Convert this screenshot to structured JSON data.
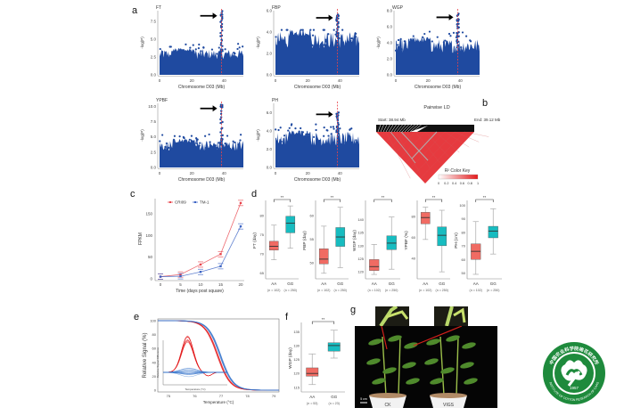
{
  "panels": {
    "a": {
      "letter": "a"
    },
    "b": {
      "letter": "b"
    },
    "c": {
      "letter": "c"
    },
    "d": {
      "letter": "d"
    },
    "e": {
      "letter": "e"
    },
    "f": {
      "letter": "f"
    },
    "g": {
      "letter": "g"
    }
  },
  "chart_data": [
    {
      "id": "a-FT",
      "type": "scatter",
      "title": "FT",
      "xlabel": "Chromosome D03 (Mb)",
      "ylabel": "-log(P)",
      "xticks": [
        "0",
        "20",
        "40"
      ],
      "yticks": [
        "0.0",
        "2.5",
        "5.0",
        "7.5"
      ],
      "xlim": [
        0,
        52
      ],
      "ylim": [
        0,
        9
      ],
      "peak_x": 38.5,
      "peak_y": 9.0,
      "baseline_max": 4.0,
      "annotation": "arrow at peak"
    },
    {
      "id": "a-FBP",
      "type": "scatter",
      "title": "FBP",
      "xlabel": "Chromosome D03 (Mb)",
      "ylabel": "-log(P)",
      "xticks": [
        "0",
        "20",
        "40"
      ],
      "yticks": [
        "0.0",
        "2.0",
        "4.0",
        "6.0"
      ],
      "xlim": [
        0,
        52
      ],
      "ylim": [
        0,
        6
      ],
      "peak_x": 38.5,
      "peak_y": 5.8,
      "baseline_max": 4.5,
      "annotation": "arrow at peak"
    },
    {
      "id": "a-WGP",
      "type": "scatter",
      "title": "WGP",
      "xlabel": "Chromosome D03 (Mb)",
      "ylabel": "-log(P)",
      "xticks": [
        "0",
        "20",
        "40"
      ],
      "yticks": [
        "0.0",
        "2.0",
        "4.0",
        "6.0",
        "8.0"
      ],
      "xlim": [
        0,
        52
      ],
      "ylim": [
        0,
        8
      ],
      "peak_x": 38.5,
      "peak_y": 7.8,
      "baseline_max": 5.0,
      "annotation": "arrow at peak"
    },
    {
      "id": "a-YPBF",
      "type": "scatter",
      "title": "YPBF",
      "xlabel": "Chromosome D03 (Mb)",
      "ylabel": "-log(P)",
      "xticks": [
        "0",
        "20",
        "40"
      ],
      "yticks": [
        "0.0",
        "2.5",
        "5.0",
        "7.5",
        "10.0"
      ],
      "xlim": [
        0,
        52
      ],
      "ylim": [
        0,
        10.5
      ],
      "peak_x": 38.5,
      "peak_y": 10.5,
      "baseline_max": 5.0,
      "annotation": "arrow at peak"
    },
    {
      "id": "a-PH",
      "type": "scatter",
      "title": "PH",
      "xlabel": "Chromosome D03 (Mb)",
      "ylabel": "-log(P)",
      "xticks": [
        "0",
        "20",
        "40"
      ],
      "yticks": [
        "0.0",
        "2.0",
        "4.0",
        "6.0"
      ],
      "xlim": [
        0,
        52
      ],
      "ylim": [
        0,
        7
      ],
      "peak_x": 38.5,
      "peak_y": 6.3,
      "baseline_max": 4.3,
      "annotation": "arrow at peak"
    },
    {
      "id": "b",
      "type": "heatmap",
      "title": "Pairwise LD",
      "start_label": "Start: 38.94 Mb",
      "end_label": "End: 39.12 Mb",
      "key_title": "R² Color Key",
      "key_ticks": [
        "0",
        "0.2",
        "0.4",
        "0.6",
        "0.8",
        "1"
      ]
    },
    {
      "id": "c",
      "type": "line",
      "xlabel": "Time (days post square)",
      "ylabel": "FPKM",
      "x": [
        0,
        5,
        10,
        15,
        20
      ],
      "xticks": [
        "0",
        "5",
        "10",
        "15",
        "20"
      ],
      "yticks": [
        "0",
        "50",
        "100",
        "150"
      ],
      "ylim": [
        0,
        185
      ],
      "series": [
        {
          "name": "CRI09",
          "color": "#e8434b",
          "values": [
            5,
            10,
            33,
            57,
            175
          ]
        },
        {
          "name": "TM-1",
          "color": "#3b63c4",
          "values": [
            5,
            6,
            16,
            29,
            121
          ]
        }
      ]
    },
    {
      "id": "d-FT",
      "type": "box",
      "ylabel": "FT (day)",
      "sig": "**",
      "yticks": [
        "65",
        "70",
        "75",
        "80"
      ],
      "ylim": [
        64,
        83
      ],
      "groups": [
        {
          "label": "AA",
          "n": "(n = 102)",
          "min": 68.5,
          "q1": 71,
          "median": 72,
          "q3": 73.3,
          "max": 77.5,
          "color": "#f06b63"
        },
        {
          "label": "GG",
          "n": "(n = 250)",
          "min": 71.5,
          "q1": 75.5,
          "median": 78,
          "q3": 79.8,
          "max": 82.5,
          "color": "#17bcc0"
        }
      ]
    },
    {
      "id": "d-FBP",
      "type": "box",
      "ylabel": "FBP (day)",
      "sig": "**",
      "yticks": [
        "50",
        "55",
        "60"
      ],
      "ylim": [
        47,
        62.5
      ],
      "groups": [
        {
          "label": "AA",
          "n": "(n = 102)",
          "min": 47.8,
          "q1": 49.8,
          "median": 50.8,
          "q3": 53,
          "max": 57.8,
          "color": "#f06b63"
        },
        {
          "label": "GG",
          "n": "(n = 250)",
          "min": 49,
          "q1": 53.5,
          "median": 55.5,
          "q3": 57.5,
          "max": 61.8,
          "color": "#17bcc0"
        }
      ]
    },
    {
      "id": "d-WGP",
      "type": "box",
      "ylabel": "WGP (day)",
      "sig": "**",
      "yticks": [
        "120",
        "125",
        "130",
        "135",
        "140"
      ],
      "ylim": [
        118,
        146
      ],
      "groups": [
        {
          "label": "AA",
          "n": "(n = 102)",
          "min": 119,
          "q1": 120.5,
          "median": 122,
          "q3": 124.7,
          "max": 130.5,
          "color": "#f06b63"
        },
        {
          "label": "GG",
          "n": "(n = 250)",
          "min": 121,
          "q1": 128.5,
          "median": 131,
          "q3": 133.8,
          "max": 141,
          "color": "#17bcc0"
        }
      ]
    },
    {
      "id": "d-YPBF",
      "type": "box",
      "ylabel": "YPBF (%)",
      "sig": "**",
      "yticks": [
        "40",
        "60",
        "80"
      ],
      "ylim": [
        22,
        92
      ],
      "groups": [
        {
          "label": "AA",
          "n": "(n = 102)",
          "min": 58,
          "q1": 73,
          "median": 79,
          "q3": 84,
          "max": 89,
          "color": "#f06b63"
        },
        {
          "label": "GG",
          "n": "(n = 250)",
          "min": 27,
          "q1": 52,
          "median": 62,
          "q3": 70,
          "max": 86,
          "color": "#17bcc0"
        }
      ]
    },
    {
      "id": "d-PH",
      "type": "box",
      "ylabel": "PH (cm)",
      "sig": "**",
      "yticks": [
        "50",
        "60",
        "70",
        "80",
        "90",
        "100"
      ],
      "ylim": [
        47,
        101
      ],
      "groups": [
        {
          "label": "AA",
          "n": "(n = 102)",
          "min": 49,
          "q1": 60,
          "median": 66,
          "q3": 71.5,
          "max": 88,
          "color": "#f06b63"
        },
        {
          "label": "GG",
          "n": "(n = 250)",
          "min": 64,
          "q1": 76,
          "median": 81,
          "q3": 84.5,
          "max": 97.5,
          "color": "#17bcc0"
        }
      ]
    },
    {
      "id": "e",
      "type": "line",
      "xlabel": "Temperature (°C)",
      "ylabel": "Relative Signal (%)",
      "xticks": [
        "75",
        "76",
        "77",
        "78",
        "79"
      ],
      "yticks": [
        "0",
        "20",
        "40",
        "60",
        "80",
        "100"
      ],
      "xlim": [
        74.6,
        79.2
      ],
      "ylim": [
        0,
        100
      ],
      "series": [
        {
          "name": "AA melt curves",
          "color": "#e31a1c",
          "midpoint": 76.85
        },
        {
          "name": "GG melt curves",
          "color": "#2f6fc9",
          "midpoint": 76.95
        }
      ],
      "inset": {
        "ylabel": "Relative Signal Difference",
        "xlabel": "Temperature (°C)",
        "yticks": [
          "-1.0",
          "0.0",
          "1.0",
          "2.0",
          "3.0",
          "4.0"
        ],
        "xticks": [
          "75",
          "76",
          "77"
        ]
      }
    },
    {
      "id": "f",
      "type": "box",
      "ylabel": "WGP (day)",
      "sig": "**",
      "yticks": [
        "115",
        "120",
        "125",
        "130",
        "135"
      ],
      "ylim": [
        114,
        137
      ],
      "groups": [
        {
          "label": "AA",
          "n": "(n = 53)",
          "min": 116,
          "q1": 119,
          "median": 120,
          "q3": 122,
          "max": 127,
          "color": "#f06b63"
        },
        {
          "label": "GG",
          "n": "(n = 23)",
          "min": 125.5,
          "q1": 128,
          "median": 130,
          "q3": 131,
          "max": 135.5,
          "color": "#17bcc0"
        }
      ]
    }
  ],
  "photo": {
    "labels": [
      "CK",
      "VIGS"
    ],
    "scale_label": "5 cm"
  },
  "logo": {
    "chinese_text": "中国农业科学院棉花研究所",
    "english_text": "INSTITUTE OF COTTON RESEARCH OF CAAS",
    "year": "1957",
    "color": "#1e8a3c"
  }
}
